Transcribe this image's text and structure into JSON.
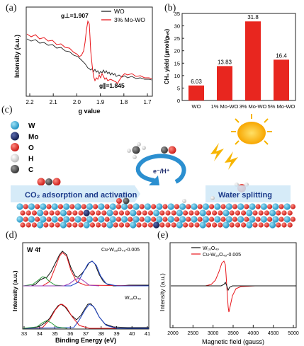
{
  "panels": {
    "a": "(a)",
    "b": "(b)",
    "c": "(c)",
    "d": "(d)",
    "e": "(e)"
  },
  "panel_a": {
    "ylabel": "Intensity (a.u.)",
    "xlabel": "g value",
    "ticks": [
      "2.2",
      "2.1",
      "2.0",
      "1.9",
      "1.8",
      "1.7"
    ],
    "legend": [
      "WO",
      "3% Mo-WO"
    ],
    "legend_colors": [
      "#222222",
      "#e8161b"
    ],
    "annot_perp": "g⊥=1.907",
    "annot_par": "g∥=1.845"
  },
  "panel_c": {
    "legend": [
      {
        "label": "W",
        "color": "#27a9d6"
      },
      {
        "label": "Mo",
        "color": "#1b2a6b"
      },
      {
        "label": "O",
        "color": "#e8261f"
      },
      {
        "label": "H",
        "color": "#e6e6e6"
      },
      {
        "label": "C",
        "color": "#5a5a5a"
      }
    ],
    "co2_text": "CO₂ adsorption and activation",
    "ew_text": "e⁻/H⁺",
    "water_text": "Water splitting"
  },
  "panel_d": {
    "title": "W 4f",
    "ylabel": "Intensity (a.u.)",
    "xlabel": "Binding Energy (eV)",
    "ticks": [
      "33",
      "34",
      "35",
      "36",
      "37",
      "38",
      "39",
      "40",
      "41"
    ],
    "label_top": "Cu-W₁₈O₄₉-0.005",
    "label_bottom": "W₁₈O₄₉"
  },
  "panel_e": {
    "ylabel": "Intensity (a.u.)",
    "xlabel": "Magnetic field (gauss)",
    "ticks": [
      "2000",
      "2500",
      "3000",
      "3500",
      "4000",
      "4500",
      "5000"
    ],
    "legend": [
      "W₁₈O₄₉",
      "Cu-W₁₈O₄₉-0.005"
    ],
    "legend_colors": [
      "#111111",
      "#e8161b"
    ]
  },
  "chart_data": [
    {
      "type": "bar",
      "panel": "b",
      "categories": [
        "WO",
        "1% Mo-WO",
        "3% Mo-WO",
        "5% Mo-WO"
      ],
      "values": [
        6.03,
        13.83,
        31.8,
        16.4
      ],
      "value_labels": [
        "6.03",
        "13.83",
        "31.8",
        "16.4"
      ],
      "ylabel": "CH₄ yield (μmol/gₕₑₜ)",
      "ylim": [
        0,
        35
      ],
      "yticks": [
        "0",
        "5",
        "10",
        "15",
        "20",
        "25",
        "30",
        "35"
      ],
      "color": "#e8261f"
    }
  ]
}
